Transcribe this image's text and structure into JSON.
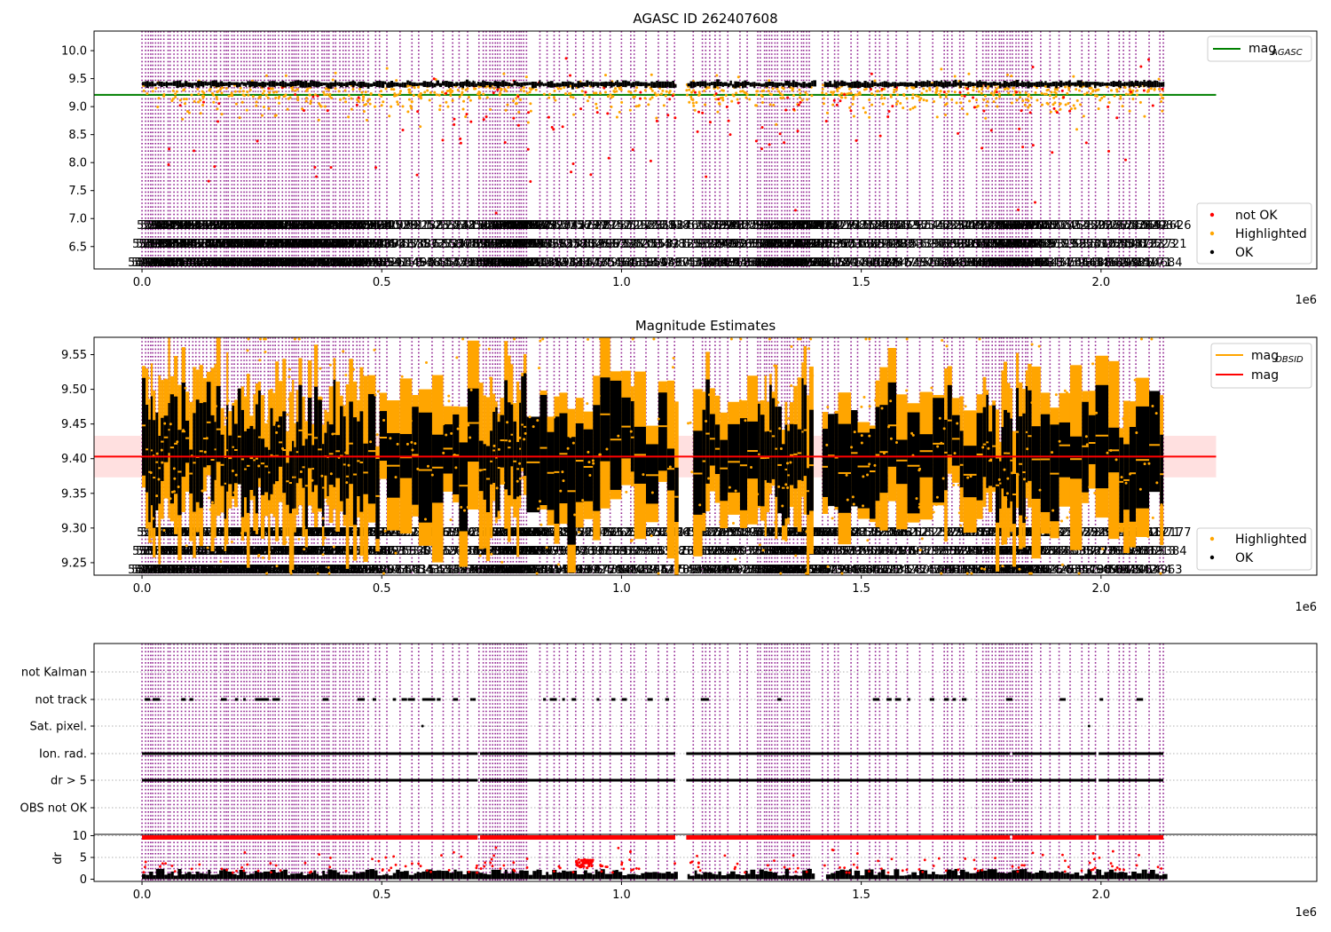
{
  "chart_data": [
    {
      "type": "scatter",
      "title": "AGASC ID 262407608",
      "xlabel": "",
      "ylabel": "",
      "x_offset_label": "1e6",
      "xlim": [
        -100000,
        2450000
      ],
      "ylim": [
        6.1,
        10.35
      ],
      "x_ticks": [
        0,
        500000,
        1000000,
        1500000,
        2000000
      ],
      "x_tick_labels": [
        "0.0",
        "0.5",
        "1.0",
        "1.5",
        "2.0"
      ],
      "y_ticks": [
        6.5,
        7.0,
        7.5,
        8.0,
        8.5,
        9.0,
        9.5,
        10.0
      ],
      "y_tick_labels": [
        "6.5",
        "7.0",
        "7.5",
        "8.0",
        "8.5",
        "9.0",
        "9.5",
        "10.0"
      ],
      "data_x_range": [
        0,
        2130000
      ],
      "ok_mag_level": 9.4,
      "mag_agasc": 9.21,
      "legend_lines": [
        {
          "name": "mag",
          "subscript": "AGASC",
          "color": "#008000"
        }
      ],
      "legend_points": [
        {
          "name": "not OK",
          "color": "#ff0000"
        },
        {
          "name": "Highlighted",
          "color": "#ffa500"
        },
        {
          "name": "OK",
          "color": "#000000"
        }
      ],
      "obs_label_rows": [
        "52…",
        "52…",
        "52…"
      ]
    },
    {
      "type": "scatter",
      "title": "Magnitude Estimates",
      "xlabel": "",
      "ylabel": "",
      "x_offset_label": "1e6",
      "xlim": [
        -100000,
        2450000
      ],
      "ylim": [
        9.232,
        9.575
      ],
      "x_ticks": [
        0,
        500000,
        1000000,
        1500000,
        2000000
      ],
      "x_tick_labels": [
        "0.0",
        "0.5",
        "1.0",
        "1.5",
        "2.0"
      ],
      "y_ticks": [
        9.25,
        9.3,
        9.35,
        9.4,
        9.45,
        9.5,
        9.55
      ],
      "y_tick_labels": [
        "9.25",
        "9.30",
        "9.35",
        "9.40",
        "9.45",
        "9.50",
        "9.55"
      ],
      "mag": 9.403,
      "mag_band": [
        9.373,
        9.433
      ],
      "legend_lines": [
        {
          "name": "mag",
          "subscript": "OBSID",
          "color": "#ffa500"
        },
        {
          "name": "mag",
          "subscript": "",
          "color": "#ff0000"
        }
      ],
      "legend_points": [
        {
          "name": "Highlighted",
          "color": "#ffa500"
        },
        {
          "name": "OK",
          "color": "#000000"
        }
      ]
    },
    {
      "type": "scatter",
      "title": "",
      "xlabel": "",
      "ylabel": "",
      "x_offset_label": "1e6",
      "xlim": [
        -100000,
        2450000
      ],
      "x_ticks": [
        0,
        500000,
        1000000,
        1500000,
        2000000
      ],
      "x_tick_labels": [
        "0.0",
        "0.5",
        "1.0",
        "1.5",
        "2.0"
      ],
      "flag_categories": [
        "not Kalman",
        "not track",
        "Sat. pixel.",
        "Ion. rad.",
        "dr > 5",
        "OBS not OK"
      ]
    },
    {
      "type": "scatter",
      "title": "",
      "xlabel": "",
      "ylabel": "dr",
      "x_offset_label": "1e6",
      "xlim": [
        -100000,
        2450000
      ],
      "ylim": [
        -0.5,
        10.3
      ],
      "y_ticks": [
        0,
        5,
        10
      ],
      "y_tick_labels": [
        "0",
        "5",
        "10"
      ],
      "x_ticks": [
        0,
        500000,
        1000000,
        1500000,
        2000000
      ],
      "x_tick_labels": [
        "0.0",
        "0.5",
        "1.0",
        "1.5",
        "2.0"
      ]
    }
  ]
}
